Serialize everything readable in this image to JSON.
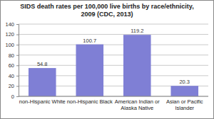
{
  "chart_data": {
    "type": "bar",
    "title": "SIDS death rates per 100,000 live births by race/ethnicity, 2009 (CDC, 2013)",
    "categories": [
      "non-Hispanic White",
      "non-Hispanic Black",
      "American Indian or Alaska Native",
      "Asian or Pacific Islander"
    ],
    "values": [
      54.8,
      100.7,
      119.2,
      20.3
    ],
    "color": "#7f7fd5",
    "ylim": [
      0,
      140
    ],
    "yticks": [
      0,
      20,
      40,
      60,
      80,
      100,
      120,
      140
    ],
    "grid": true,
    "data_labels": true
  }
}
